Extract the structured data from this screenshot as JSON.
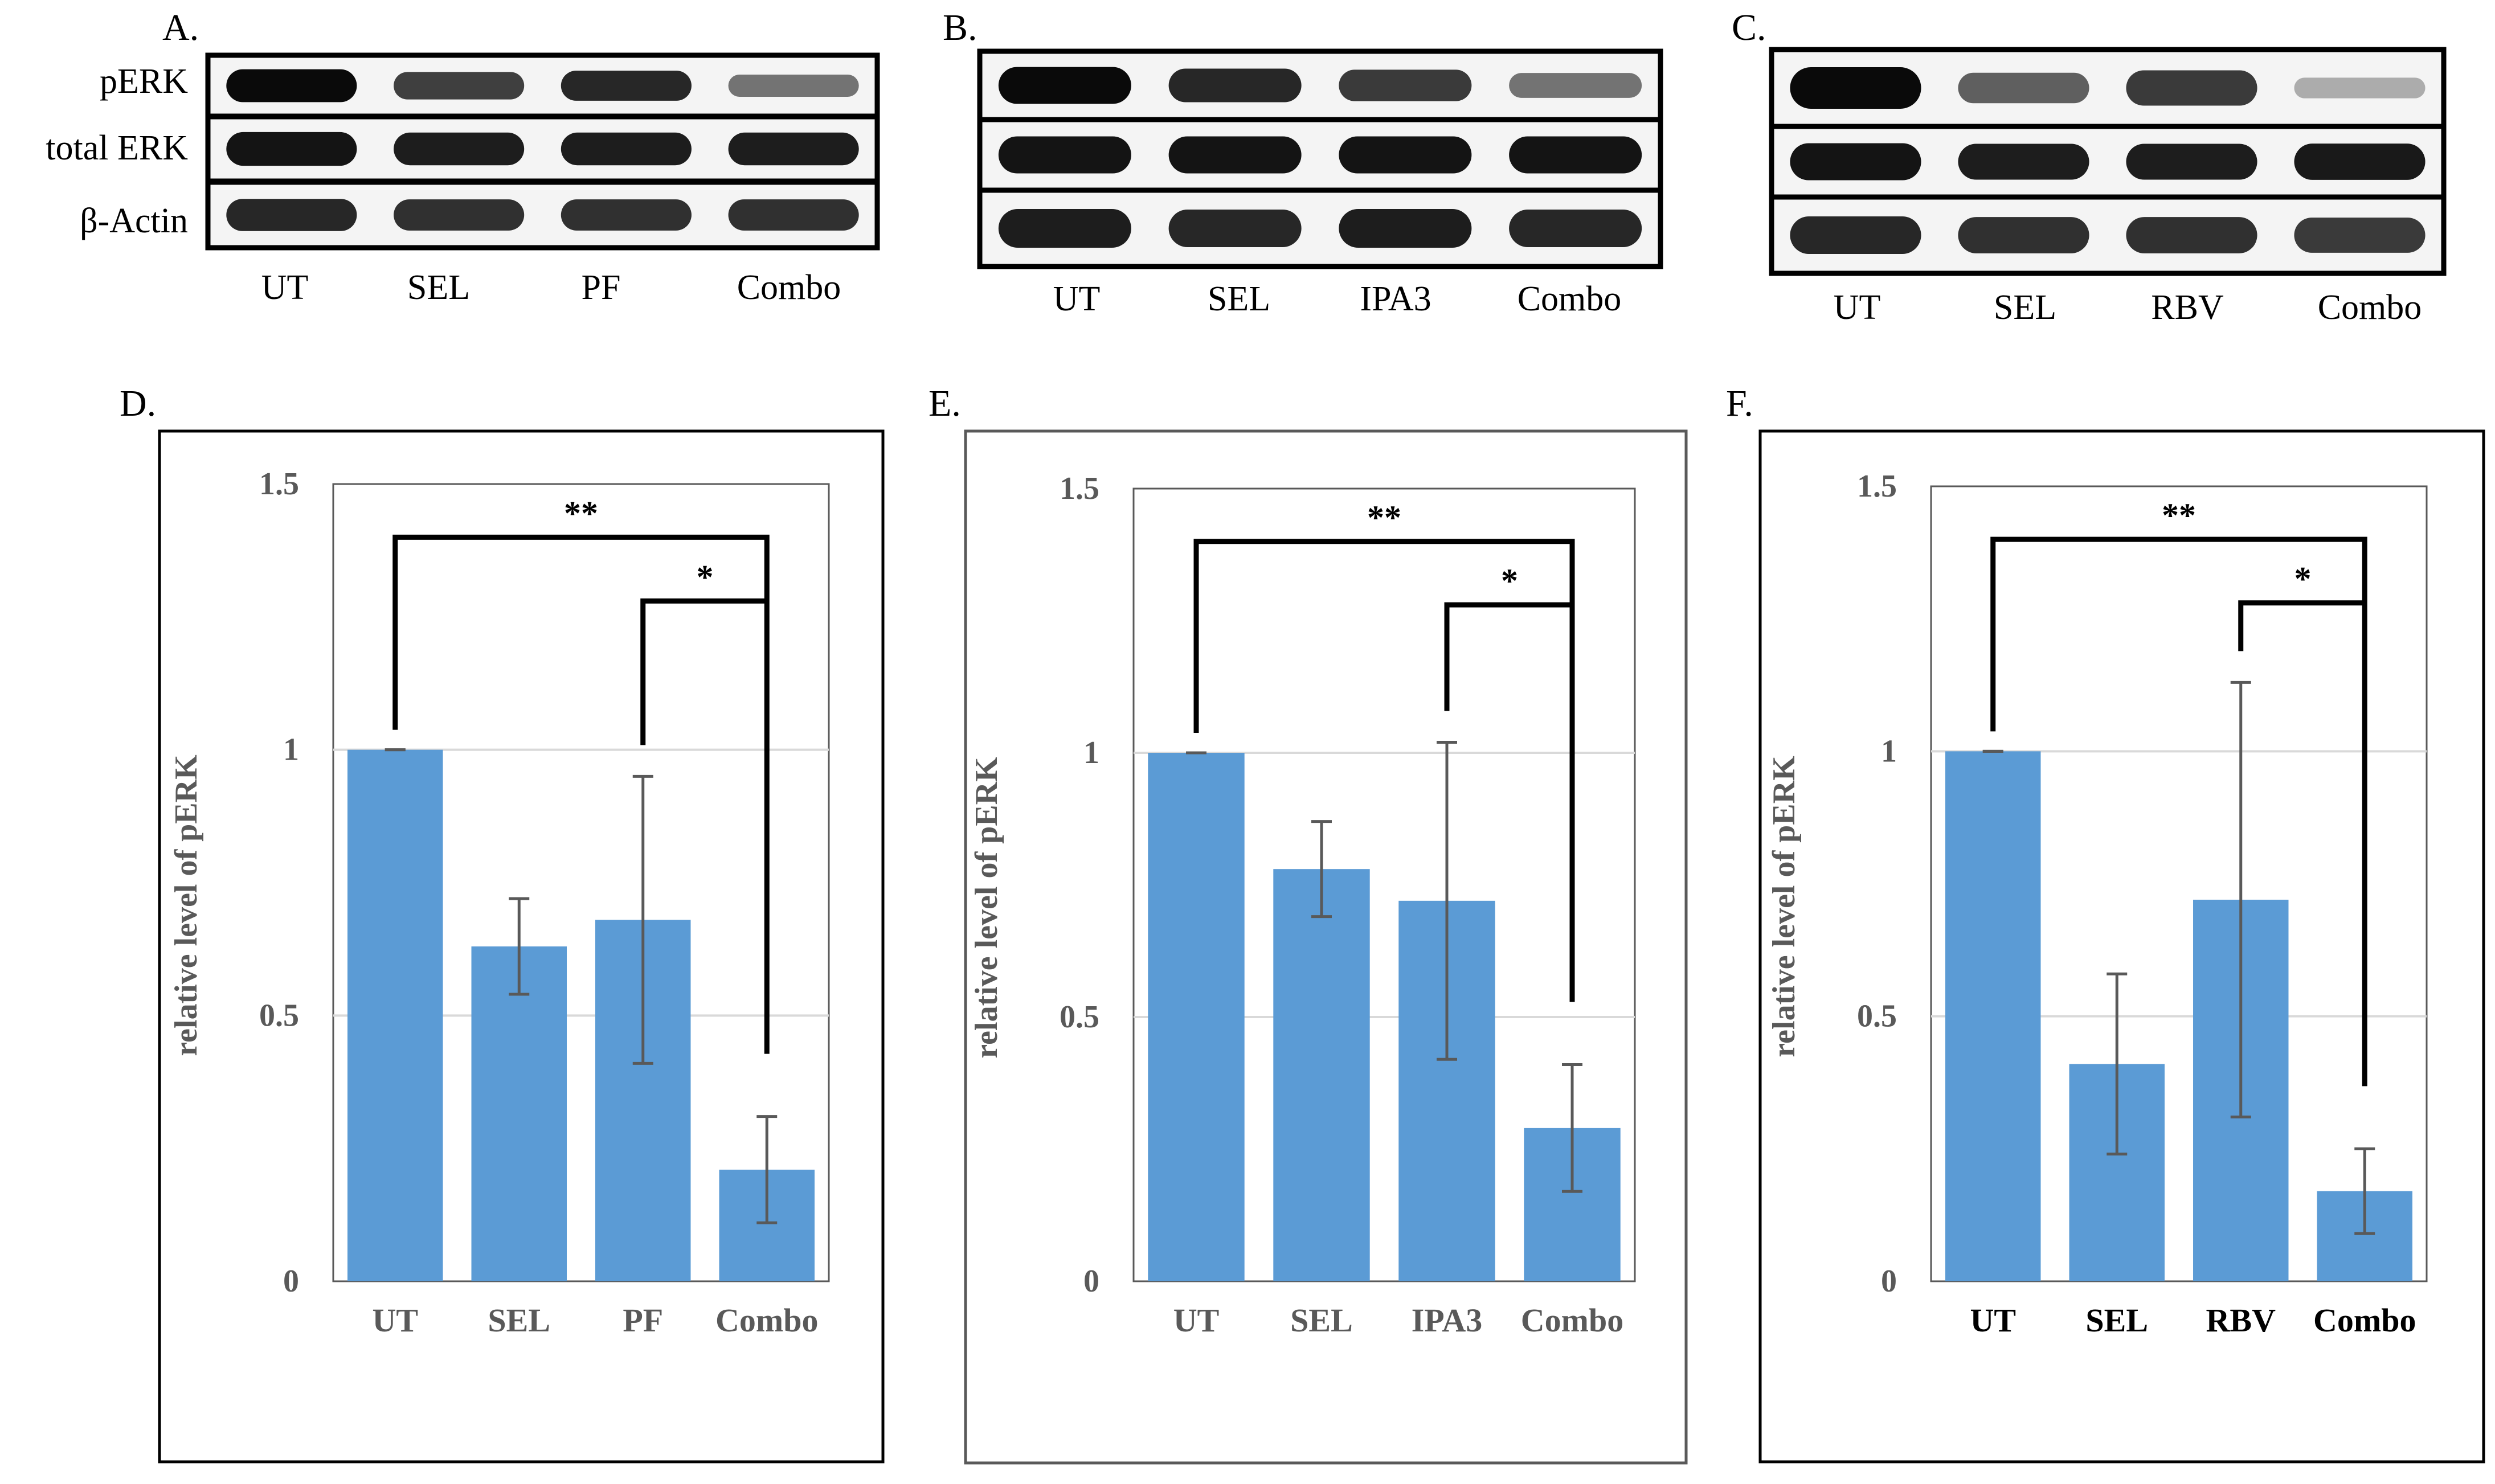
{
  "blots": [
    {
      "panel": "A.",
      "row_labels": [
        "pERK",
        "total ERK",
        "β-Actin"
      ],
      "lanes": [
        "UT",
        "SEL",
        "PF",
        "Combo"
      ],
      "band_intensity": [
        [
          1.0,
          0.72,
          0.85,
          0.45
        ],
        [
          0.95,
          0.9,
          0.9,
          0.9
        ],
        [
          0.85,
          0.8,
          0.8,
          0.8
        ]
      ]
    },
    {
      "panel": "B.",
      "row_labels": [],
      "lanes": [
        "UT",
        "SEL",
        "IPA3",
        "Combo"
      ],
      "band_intensity": [
        [
          1.0,
          0.85,
          0.75,
          0.45
        ],
        [
          0.95,
          0.95,
          0.95,
          0.95
        ],
        [
          0.9,
          0.85,
          0.9,
          0.85
        ]
      ]
    },
    {
      "panel": "C.",
      "row_labels": [],
      "lanes": [
        "UT",
        "SEL",
        "RBV",
        "Combo"
      ],
      "band_intensity": [
        [
          1.0,
          0.55,
          0.75,
          0.15
        ],
        [
          0.95,
          0.9,
          0.9,
          0.92
        ],
        [
          0.85,
          0.8,
          0.8,
          0.75
        ]
      ]
    }
  ],
  "chart_data": [
    {
      "panel": "D.",
      "type": "bar",
      "categories": [
        "UT",
        "SEL",
        "PF",
        "Combo"
      ],
      "values": [
        1.0,
        0.63,
        0.68,
        0.21
      ],
      "errors": [
        0.0,
        0.09,
        0.27,
        0.1
      ],
      "ylabel": "relative level of pERK",
      "ylim": [
        0,
        1.5
      ],
      "yticks": [
        0,
        0.5,
        1,
        1.5
      ],
      "ytick_labels": [
        "0",
        "0.5",
        "1",
        "1.5"
      ],
      "bar_color": "#5b9bd5",
      "grid": true,
      "significance": [
        {
          "from": 0,
          "to": 3,
          "label": "**"
        },
        {
          "from": 2,
          "to": 3,
          "label": "*"
        }
      ]
    },
    {
      "panel": "E.",
      "type": "bar",
      "categories": [
        "UT",
        "SEL",
        "IPA3",
        "Combo"
      ],
      "values": [
        1.0,
        0.78,
        0.72,
        0.29
      ],
      "errors": [
        0.0,
        0.09,
        0.3,
        0.12
      ],
      "ylabel": "relative level of pERK",
      "ylim": [
        0,
        1.5
      ],
      "yticks": [
        0,
        0.5,
        1,
        1.5
      ],
      "ytick_labels": [
        "0",
        "0.5",
        "1",
        "1.5"
      ],
      "bar_color": "#5b9bd5",
      "grid": true,
      "significance": [
        {
          "from": 0,
          "to": 3,
          "label": "**"
        },
        {
          "from": 2,
          "to": 3,
          "label": "*"
        }
      ]
    },
    {
      "panel": "F.",
      "type": "bar",
      "categories": [
        "UT",
        "SEL",
        "RBV",
        "Combo"
      ],
      "values": [
        1.0,
        0.41,
        0.72,
        0.17
      ],
      "errors": [
        0.0,
        0.17,
        0.41,
        0.08
      ],
      "ylabel": "relative level of pERK",
      "ylim": [
        0,
        1.5
      ],
      "yticks": [
        0,
        0.5,
        1,
        1.5
      ],
      "ytick_labels": [
        "0",
        "0.5",
        "1",
        "1.5"
      ],
      "bar_color": "#5b9bd5",
      "grid": true,
      "significance": [
        {
          "from": 0,
          "to": 3,
          "label": "**"
        },
        {
          "from": 2,
          "to": 3,
          "label": "*"
        }
      ]
    }
  ]
}
